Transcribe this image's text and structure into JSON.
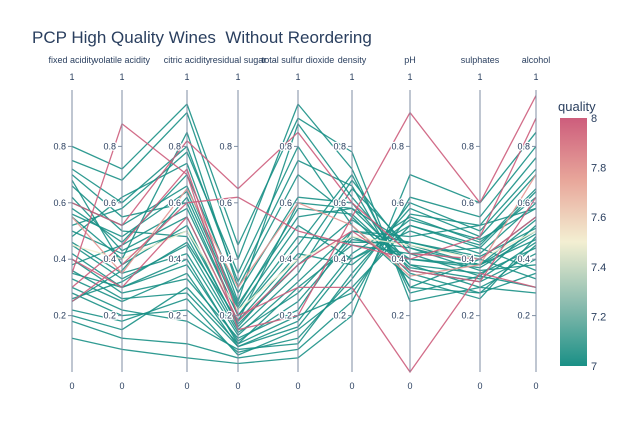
{
  "title": "PCP High Quality Wines  Without Reordering",
  "chart_data": {
    "type": "parallel_coordinates",
    "title": "PCP High Quality Wines  Without Reordering",
    "dimensions": [
      "fixed acidity",
      "volatile acidity",
      "citric acidity",
      "residual sugar",
      "total sulfur dioxide",
      "density",
      "pH",
      "sulphates",
      "alcohol"
    ],
    "axis_range": [
      0,
      1
    ],
    "axis_top_label": "1",
    "axis_bottom_label": "0",
    "tick_values": [
      0.2,
      0.4,
      0.6,
      0.8
    ],
    "tick_labels": [
      "0.2",
      "0.4",
      "0.6",
      "0.8"
    ],
    "axis_end_labels": [
      "1",
      "0"
    ],
    "colorbar": {
      "title": "quality",
      "range": [
        7,
        8
      ],
      "tick_labels": [
        "7",
        "7.2",
        "7.4",
        "7.6",
        "7.8",
        "8"
      ],
      "colorscale": [
        "#1a9086",
        "#8bbcaf",
        "#f3efd2",
        "#e8a69a",
        "#cd5d7c"
      ]
    },
    "series": [
      {
        "quality": 7,
        "values": [
          0.62,
          0.43,
          0.55,
          0.18,
          0.6,
          0.58,
          0.45,
          0.38,
          0.47
        ]
      },
      {
        "quality": 7,
        "values": [
          0.35,
          0.3,
          0.4,
          0.1,
          0.3,
          0.45,
          0.42,
          0.34,
          0.52
        ]
      },
      {
        "quality": 7,
        "values": [
          0.48,
          0.62,
          0.74,
          0.25,
          0.88,
          0.62,
          0.38,
          0.3,
          0.4
        ]
      },
      {
        "quality": 7,
        "values": [
          0.22,
          0.18,
          0.26,
          0.06,
          0.15,
          0.3,
          0.52,
          0.45,
          0.65
        ]
      },
      {
        "quality": 7,
        "values": [
          0.7,
          0.55,
          0.6,
          0.2,
          0.45,
          0.7,
          0.3,
          0.4,
          0.33
        ]
      },
      {
        "quality": 7,
        "values": [
          0.4,
          0.28,
          0.33,
          0.12,
          0.22,
          0.5,
          0.48,
          0.52,
          0.58
        ]
      },
      {
        "quality": 7,
        "values": [
          0.55,
          0.4,
          0.85,
          0.3,
          0.7,
          0.55,
          0.35,
          0.28,
          0.45
        ]
      },
      {
        "quality": 7,
        "values": [
          0.3,
          0.22,
          0.18,
          0.08,
          0.1,
          0.35,
          0.58,
          0.48,
          0.7
        ]
      },
      {
        "quality": 7,
        "values": [
          0.66,
          0.5,
          0.48,
          0.15,
          0.35,
          0.65,
          0.44,
          0.36,
          0.38
        ]
      },
      {
        "quality": 7,
        "values": [
          0.25,
          0.36,
          0.62,
          0.22,
          0.52,
          0.4,
          0.5,
          0.42,
          0.6
        ]
      },
      {
        "quality": 7,
        "values": [
          0.75,
          0.68,
          0.92,
          0.4,
          0.95,
          0.72,
          0.28,
          0.34,
          0.3
        ]
      },
      {
        "quality": 7,
        "values": [
          0.18,
          0.12,
          0.1,
          0.05,
          0.08,
          0.25,
          0.62,
          0.55,
          0.8
        ]
      },
      {
        "quality": 7,
        "values": [
          0.45,
          0.33,
          0.45,
          0.14,
          0.28,
          0.48,
          0.4,
          0.38,
          0.5
        ]
      },
      {
        "quality": 7,
        "values": [
          0.58,
          0.46,
          0.7,
          0.28,
          0.62,
          0.6,
          0.36,
          0.32,
          0.42
        ]
      },
      {
        "quality": 7,
        "values": [
          0.33,
          0.25,
          0.35,
          0.09,
          0.18,
          0.42,
          0.55,
          0.46,
          0.62
        ]
      },
      {
        "quality": 7,
        "values": [
          0.52,
          0.58,
          0.78,
          0.35,
          0.8,
          0.52,
          0.33,
          0.26,
          0.48
        ]
      },
      {
        "quality": 7,
        "values": [
          0.12,
          0.08,
          0.05,
          0.03,
          0.05,
          0.2,
          0.7,
          0.6,
          0.85
        ]
      },
      {
        "quality": 7,
        "values": [
          0.68,
          0.38,
          0.52,
          0.16,
          0.4,
          0.68,
          0.42,
          0.44,
          0.36
        ]
      },
      {
        "quality": 7,
        "values": [
          0.38,
          0.45,
          0.58,
          0.2,
          0.48,
          0.46,
          0.46,
          0.4,
          0.55
        ]
      },
      {
        "quality": 7,
        "values": [
          0.28,
          0.2,
          0.22,
          0.07,
          0.12,
          0.33,
          0.6,
          0.5,
          0.72
        ]
      },
      {
        "quality": 7,
        "values": [
          0.8,
          0.72,
          0.95,
          0.45,
          0.9,
          0.78,
          0.25,
          0.3,
          0.28
        ]
      },
      {
        "quality": 7,
        "values": [
          0.42,
          0.3,
          0.38,
          0.11,
          0.25,
          0.47,
          0.44,
          0.38,
          0.54
        ]
      },
      {
        "quality": 7,
        "values": [
          0.6,
          0.52,
          0.66,
          0.24,
          0.55,
          0.58,
          0.38,
          0.35,
          0.44
        ]
      },
      {
        "quality": 7,
        "values": [
          0.2,
          0.15,
          0.3,
          0.1,
          0.2,
          0.28,
          0.56,
          0.52,
          0.76
        ]
      },
      {
        "quality": 7,
        "values": [
          0.5,
          0.42,
          0.5,
          0.17,
          0.38,
          0.54,
          0.4,
          0.37,
          0.49
        ]
      },
      {
        "quality": 7,
        "values": [
          0.72,
          0.6,
          0.8,
          0.32,
          0.75,
          0.66,
          0.3,
          0.28,
          0.35
        ]
      },
      {
        "quality": 7,
        "values": [
          0.36,
          0.26,
          0.28,
          0.09,
          0.16,
          0.4,
          0.52,
          0.44,
          0.64
        ]
      },
      {
        "quality": 7,
        "values": [
          0.46,
          0.35,
          0.42,
          0.13,
          0.32,
          0.5,
          0.46,
          0.41,
          0.51
        ]
      },
      {
        "quality": 7,
        "values": [
          0.56,
          0.48,
          0.64,
          0.23,
          0.58,
          0.56,
          0.37,
          0.33,
          0.46
        ]
      },
      {
        "quality": 7,
        "values": [
          0.26,
          0.32,
          0.46,
          0.18,
          0.42,
          0.38,
          0.54,
          0.47,
          0.58
        ]
      },
      {
        "quality": 8,
        "values": [
          0.6,
          0.52,
          0.82,
          0.65,
          0.85,
          0.6,
          0.42,
          0.4,
          0.55
        ]
      },
      {
        "quality": 8,
        "values": [
          0.35,
          0.88,
          0.7,
          0.15,
          0.2,
          0.55,
          0.92,
          0.6,
          0.98
        ]
      },
      {
        "quality": 8,
        "values": [
          0.3,
          0.45,
          0.72,
          0.2,
          0.3,
          0.3,
          0.0,
          0.35,
          0.3
        ]
      },
      {
        "quality": 8,
        "values": [
          0.25,
          0.38,
          0.6,
          0.62,
          0.5,
          0.45,
          0.4,
          0.48,
          0.9
        ]
      },
      {
        "quality": 8,
        "values": [
          0.4,
          0.3,
          0.55,
          0.18,
          0.38,
          0.5,
          0.36,
          0.32,
          0.62
        ]
      },
      {
        "quality": 7.5,
        "values": [
          0.45,
          0.4,
          0.5,
          0.22,
          0.4,
          0.48,
          0.45,
          0.4,
          0.5
        ]
      },
      {
        "quality": 7.8,
        "values": [
          0.55,
          0.35,
          0.65,
          0.3,
          0.6,
          0.52,
          0.34,
          0.38,
          0.7
        ]
      }
    ]
  }
}
